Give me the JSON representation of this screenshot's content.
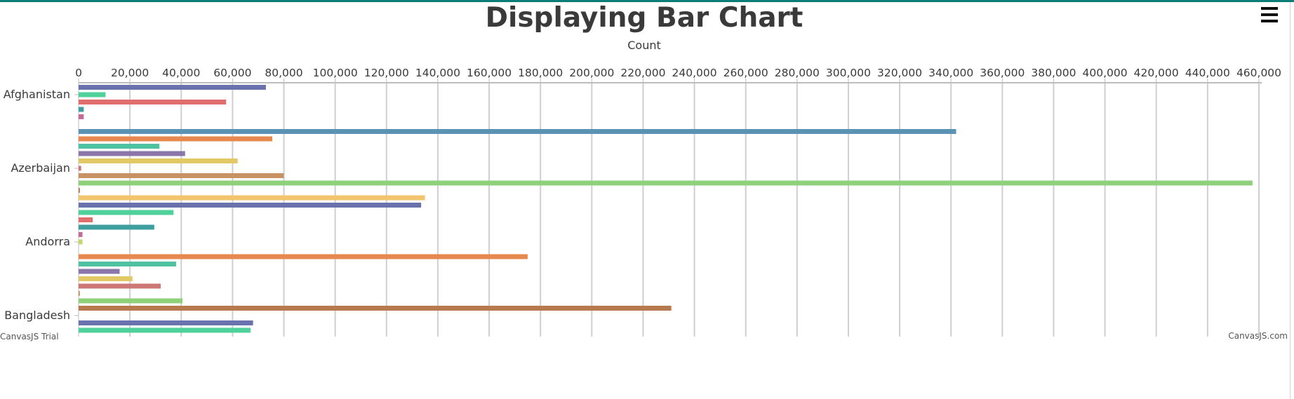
{
  "accent_color": "#0b7d76",
  "menu_icon": "hamburger-menu-icon",
  "chart_data": {
    "type": "bar",
    "orientation": "horizontal",
    "title": "Displaying Bar Chart",
    "axis_y_title": "Count",
    "axis_y": {
      "position": "top",
      "range": [
        0,
        460000
      ],
      "interval": 20000,
      "tick_labels": [
        "0",
        "20,000",
        "40,000",
        "60,000",
        "80,000",
        "100,000",
        "120,000",
        "140,000",
        "160,000",
        "180,000",
        "200,000",
        "220,000",
        "240,000",
        "260,000",
        "280,000",
        "300,000",
        "320,000",
        "340,000",
        "360,000",
        "380,000",
        "400,000",
        "420,000",
        "440,000",
        "460,000"
      ],
      "vertical_grid": true
    },
    "axis_x": {
      "labeled_categories": [
        "Afghanistan",
        "Azerbaijan",
        "Andorra",
        "Bangladesh"
      ],
      "label_rows": [
        1,
        11,
        21,
        31
      ]
    },
    "bars": [
      {
        "row": 0,
        "value": 73000,
        "color": "#6a72ad"
      },
      {
        "row": 1,
        "value": 10500,
        "color": "#4fd19b"
      },
      {
        "row": 2,
        "value": 57500,
        "color": "#e06e6e"
      },
      {
        "row": 3,
        "value": 2000,
        "color": "#3e9ea0"
      },
      {
        "row": 4,
        "value": 2000,
        "color": "#c56a95"
      },
      {
        "row": 6,
        "value": 342000,
        "color": "#5b93b5"
      },
      {
        "row": 7,
        "value": 75500,
        "color": "#e7894f"
      },
      {
        "row": 8,
        "value": 31500,
        "color": "#4fc2a1"
      },
      {
        "row": 9,
        "value": 41500,
        "color": "#8a76a8"
      },
      {
        "row": 10,
        "value": 62000,
        "color": "#e3c965"
      },
      {
        "row": 11,
        "value": 1000,
        "color": "#cd7777"
      },
      {
        "row": 12,
        "value": 80000,
        "color": "#c89364"
      },
      {
        "row": 13,
        "value": 457500,
        "color": "#8fd17a"
      },
      {
        "row": 14,
        "value": 500,
        "color": "#b67a4e"
      },
      {
        "row": 15,
        "value": 135000,
        "color": "#f3c46d"
      },
      {
        "row": 16,
        "value": 133500,
        "color": "#6a72ad"
      },
      {
        "row": 17,
        "value": 37000,
        "color": "#4fd19b"
      },
      {
        "row": 18,
        "value": 5500,
        "color": "#e06e6e"
      },
      {
        "row": 19,
        "value": 29500,
        "color": "#3e9ea0"
      },
      {
        "row": 20,
        "value": 1500,
        "color": "#c56a95"
      },
      {
        "row": 21,
        "value": 1500,
        "color": "#c8d56b"
      },
      {
        "row": 23,
        "value": 175000,
        "color": "#e7894f"
      },
      {
        "row": 24,
        "value": 38000,
        "color": "#4fc2a1"
      },
      {
        "row": 25,
        "value": 16000,
        "color": "#8a76a8"
      },
      {
        "row": 26,
        "value": 21000,
        "color": "#e3c965"
      },
      {
        "row": 27,
        "value": 32000,
        "color": "#cd7777"
      },
      {
        "row": 28,
        "value": 500,
        "color": "#c89364"
      },
      {
        "row": 29,
        "value": 40500,
        "color": "#8fd17a"
      },
      {
        "row": 30,
        "value": 231000,
        "color": "#b67a4e"
      },
      {
        "row": 32,
        "value": 68000,
        "color": "#6a72ad"
      },
      {
        "row": 33,
        "value": 67000,
        "color": "#4fd19b"
      }
    ],
    "credits": {
      "left": "CanvasJS Trial",
      "right": "CanvasJS.com"
    }
  }
}
